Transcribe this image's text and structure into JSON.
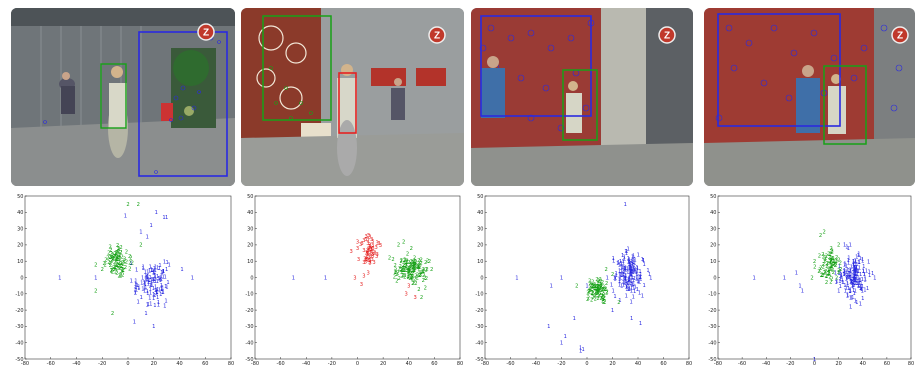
{
  "figure": {
    "badge_letter": "Z",
    "colors": {
      "class1": "#2a2ae0",
      "class2": "#17a117",
      "class3": "#e52222"
    },
    "panels": [
      {
        "id": "panel-1",
        "photo_boxes": [
          {
            "cls": "class1"
          },
          {
            "cls": "class2"
          }
        ]
      },
      {
        "id": "panel-2",
        "photo_boxes": [
          {
            "cls": "class2"
          },
          {
            "cls": "class3"
          }
        ]
      },
      {
        "id": "panel-3",
        "photo_boxes": [
          {
            "cls": "class1"
          },
          {
            "cls": "class2"
          }
        ]
      },
      {
        "id": "panel-4",
        "photo_boxes": [
          {
            "cls": "class1"
          },
          {
            "cls": "class2"
          }
        ]
      }
    ]
  },
  "chart_data": [
    {
      "type": "scatter",
      "xlim": [
        -80,
        80
      ],
      "ylim": [
        -50,
        50
      ],
      "xticks": [
        -80,
        -60,
        -40,
        -20,
        0,
        20,
        40,
        60,
        80
      ],
      "yticks": [
        -50,
        -40,
        -30,
        -20,
        -10,
        0,
        10,
        20,
        30,
        40,
        50
      ],
      "grid": false,
      "series": [
        {
          "marker": "1",
          "color": "#2a2ae0",
          "clusters": [
            {
              "cx": 18,
              "cy": -3,
              "sx": 7,
              "sy": 6,
              "n": 120
            }
          ],
          "points": [
            [
              22,
              40
            ],
            [
              28,
              37
            ],
            [
              30,
              37
            ],
            [
              18,
              32
            ],
            [
              15,
              25
            ],
            [
              10,
              28
            ],
            [
              -2,
              38
            ],
            [
              14,
              -22
            ],
            [
              5,
              -27
            ],
            [
              20,
              -30
            ],
            [
              42,
              5
            ],
            [
              30,
              5
            ],
            [
              -25,
              0
            ],
            [
              -53,
              0
            ],
            [
              50,
              0
            ]
          ]
        },
        {
          "marker": "2",
          "color": "#17a117",
          "clusters": [
            {
              "cx": -8,
              "cy": 10,
              "sx": 5,
              "sy": 4,
              "n": 90
            }
          ],
          "points": [
            [
              0,
              45
            ],
            [
              8,
              45
            ],
            [
              -12,
              -22
            ],
            [
              -25,
              8
            ],
            [
              -20,
              5
            ],
            [
              -25,
              -8
            ],
            [
              10,
              20
            ]
          ]
        }
      ]
    },
    {
      "type": "scatter",
      "xlim": [
        -80,
        80
      ],
      "ylim": [
        -50,
        50
      ],
      "xticks": [
        -80,
        -60,
        -40,
        -20,
        0,
        20,
        40,
        60,
        80
      ],
      "yticks": [
        -50,
        -40,
        -30,
        -20,
        -10,
        0,
        10,
        20,
        30,
        40,
        50
      ],
      "grid": false,
      "series": [
        {
          "marker": "3",
          "color": "#e52222",
          "clusters": [
            {
              "cx": 10,
              "cy": 15,
              "sx": 3,
              "sy": 5,
              "n": 55
            }
          ],
          "points": [
            [
              0,
              22
            ],
            [
              0,
              18
            ],
            [
              -2,
              0
            ],
            [
              3,
              -4
            ],
            [
              5,
              1
            ],
            [
              -5,
              16
            ],
            [
              40,
              -5
            ],
            [
              38,
              -10
            ],
            [
              45,
              -12
            ]
          ]
        },
        {
          "marker": "2",
          "color": "#17a117",
          "clusters": [
            {
              "cx": 42,
              "cy": 5,
              "sx": 6,
              "sy": 4,
              "n": 130
            }
          ],
          "points": [
            [
              32,
              20
            ],
            [
              36,
              22
            ],
            [
              25,
              12
            ],
            [
              50,
              -12
            ],
            [
              42,
              18
            ]
          ]
        },
        {
          "marker": "1",
          "color": "#2a2ae0",
          "clusters": [],
          "points": [
            [
              -50,
              0
            ],
            [
              -25,
              0
            ]
          ]
        }
      ]
    },
    {
      "type": "scatter",
      "xlim": [
        -80,
        80
      ],
      "ylim": [
        -50,
        50
      ],
      "xticks": [
        -80,
        -60,
        -40,
        -20,
        0,
        20,
        40,
        60,
        80
      ],
      "yticks": [
        -50,
        -40,
        -30,
        -20,
        -10,
        0,
        10,
        20,
        30,
        40,
        50
      ],
      "grid": false,
      "series": [
        {
          "marker": "1",
          "color": "#2a2ae0",
          "clusters": [
            {
              "cx": 33,
              "cy": 2,
              "sx": 6,
              "sy": 6,
              "n": 170
            }
          ],
          "points": [
            [
              30,
              45
            ],
            [
              -5,
              -43
            ],
            [
              -5,
              -45
            ],
            [
              -3,
              -44
            ],
            [
              -17,
              -36
            ],
            [
              -20,
              -40
            ],
            [
              -10,
              -25
            ],
            [
              -30,
              -30
            ],
            [
              -28,
              -5
            ],
            [
              35,
              -25
            ],
            [
              42,
              -28
            ],
            [
              20,
              -20
            ],
            [
              -20,
              0
            ],
            [
              -55,
              0
            ],
            [
              50,
              0
            ],
            [
              0,
              -5
            ]
          ]
        },
        {
          "marker": "2",
          "color": "#17a117",
          "clusters": [
            {
              "cx": 8,
              "cy": -8,
              "sx": 4,
              "sy": 4,
              "n": 90
            }
          ],
          "points": [
            [
              15,
              5
            ],
            [
              20,
              2
            ],
            [
              -8,
              -5
            ],
            [
              25,
              -15
            ]
          ]
        }
      ]
    },
    {
      "type": "scatter",
      "xlim": [
        -80,
        80
      ],
      "ylim": [
        -50,
        50
      ],
      "xticks": [
        -80,
        -60,
        -40,
        -20,
        0,
        20,
        40,
        60,
        80
      ],
      "yticks": [
        -50,
        -40,
        -30,
        -20,
        -10,
        0,
        10,
        20,
        30,
        40,
        50
      ],
      "grid": false,
      "series": [
        {
          "marker": "1",
          "color": "#2a2ae0",
          "clusters": [
            {
              "cx": 32,
              "cy": 1,
              "sx": 6,
              "sy": 6,
              "n": 170
            }
          ],
          "points": [
            [
              25,
              20
            ],
            [
              28,
              18
            ],
            [
              -12,
              -5
            ],
            [
              -10,
              -8
            ],
            [
              -15,
              3
            ],
            [
              -50,
              0
            ],
            [
              -25,
              0
            ],
            [
              50,
              0
            ],
            [
              30,
              -18
            ],
            [
              35,
              -15
            ],
            [
              0,
              -50
            ]
          ]
        },
        {
          "marker": "2",
          "color": "#17a117",
          "clusters": [
            {
              "cx": 12,
              "cy": 8,
              "sx": 4,
              "sy": 5,
              "n": 70
            }
          ],
          "points": [
            [
              8,
              28
            ],
            [
              5,
              26
            ],
            [
              0,
              10
            ],
            [
              -2,
              0
            ],
            [
              8,
              3
            ],
            [
              10,
              -3
            ],
            [
              20,
              20
            ]
          ]
        }
      ]
    }
  ]
}
